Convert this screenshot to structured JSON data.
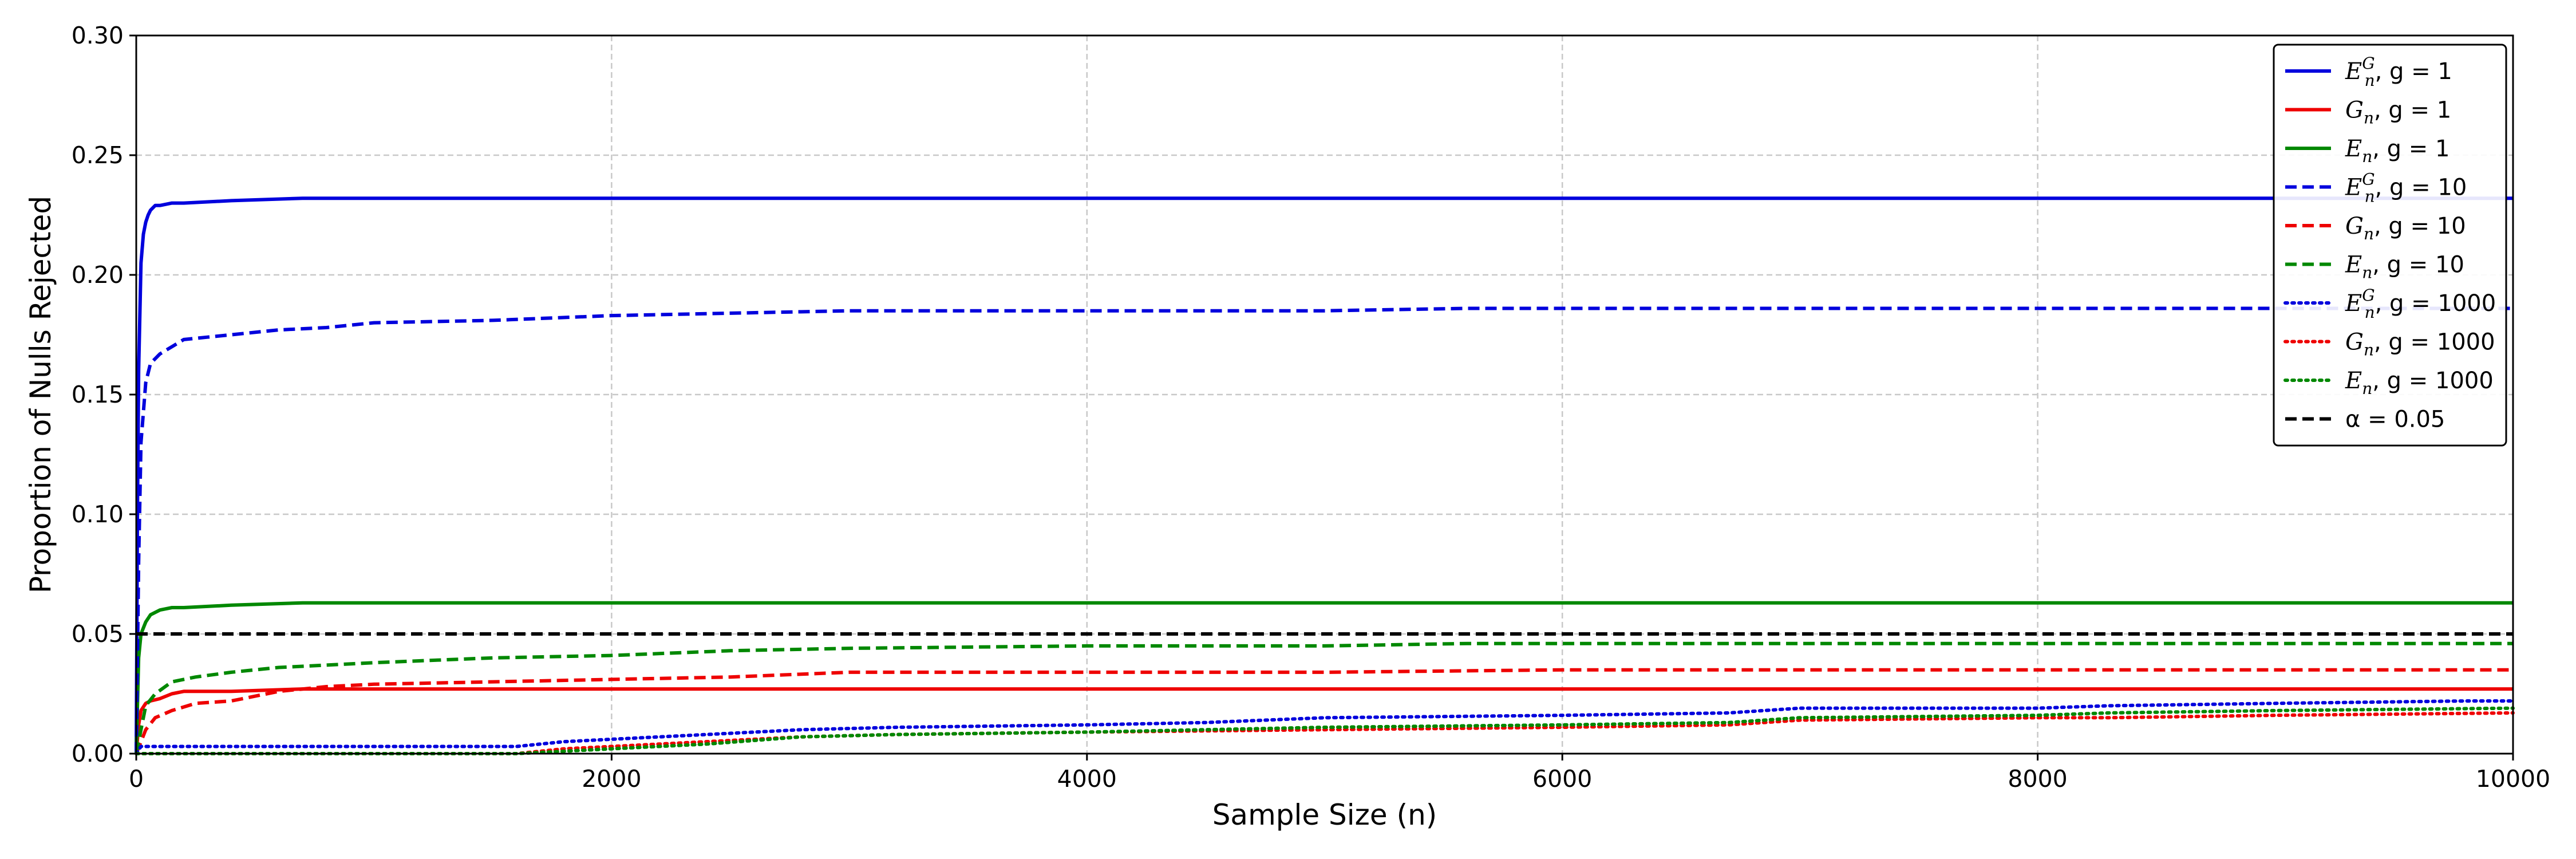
{
  "chart_data": {
    "type": "line",
    "title": "",
    "xlabel": "Sample Size (n)",
    "ylabel": "Proportion of Nulls Rejected",
    "xlim": [
      0,
      10000
    ],
    "ylim": [
      0,
      0.3
    ],
    "xticks": [
      "0",
      "2000",
      "4000",
      "6000",
      "8000",
      "10000"
    ],
    "yticks": [
      "0.00",
      "0.05",
      "0.10",
      "0.15",
      "0.20",
      "0.25",
      "0.30"
    ],
    "grid": true,
    "legend_position": "top-right",
    "series": [
      {
        "name": "E_n^G, g = 1",
        "legend": {
          "sym": "E",
          "sub": "n",
          "sup": "G",
          "rest": ", g = 1"
        },
        "color": "#0000dd",
        "dash": "solid",
        "x": [
          0,
          5,
          10,
          20,
          30,
          40,
          50,
          60,
          80,
          100,
          150,
          200,
          400,
          700,
          1000,
          10000
        ],
        "y": [
          0,
          0.1,
          0.16,
          0.205,
          0.217,
          0.222,
          0.225,
          0.227,
          0.229,
          0.229,
          0.23,
          0.23,
          0.231,
          0.232,
          0.232,
          0.232
        ]
      },
      {
        "name": "G_n, g = 1",
        "legend": {
          "sym": "G",
          "sub": "n",
          "sup": "",
          "rest": ", g = 1"
        },
        "color": "#ee0000",
        "dash": "solid",
        "x": [
          0,
          10,
          20,
          40,
          60,
          100,
          150,
          200,
          400,
          700,
          10000
        ],
        "y": [
          0,
          0.012,
          0.018,
          0.021,
          0.022,
          0.023,
          0.025,
          0.026,
          0.026,
          0.027,
          0.027
        ]
      },
      {
        "name": "E_n, g = 1",
        "legend": {
          "sym": "E",
          "sub": "n",
          "sup": "",
          "rest": ", g = 1"
        },
        "color": "#008800",
        "dash": "solid",
        "x": [
          0,
          10,
          20,
          40,
          60,
          100,
          150,
          200,
          400,
          700,
          10000
        ],
        "y": [
          0,
          0.04,
          0.05,
          0.055,
          0.058,
          0.06,
          0.061,
          0.061,
          0.062,
          0.063,
          0.063
        ]
      },
      {
        "name": "E_n^G, g = 10",
        "legend": {
          "sym": "E",
          "sub": "n",
          "sup": "G",
          "rest": ", g = 10"
        },
        "color": "#0000dd",
        "dash": "dashed",
        "x": [
          0,
          10,
          20,
          40,
          60,
          100,
          150,
          200,
          300,
          400,
          600,
          800,
          1000,
          1500,
          2000,
          2500,
          3000,
          4000,
          5000,
          5600,
          6000,
          10000
        ],
        "y": [
          0,
          0.08,
          0.13,
          0.155,
          0.163,
          0.167,
          0.17,
          0.173,
          0.174,
          0.175,
          0.177,
          0.178,
          0.18,
          0.181,
          0.183,
          0.184,
          0.185,
          0.185,
          0.185,
          0.186,
          0.186,
          0.186
        ]
      },
      {
        "name": "G_n, g = 10",
        "legend": {
          "sym": "G",
          "sub": "n",
          "sup": "",
          "rest": ", g = 10"
        },
        "color": "#ee0000",
        "dash": "dashed",
        "x": [
          0,
          20,
          40,
          80,
          150,
          250,
          400,
          600,
          800,
          1000,
          1500,
          2000,
          2500,
          3000,
          4000,
          5000,
          6000,
          10000
        ],
        "y": [
          0,
          0.005,
          0.01,
          0.015,
          0.018,
          0.021,
          0.022,
          0.026,
          0.028,
          0.029,
          0.03,
          0.031,
          0.032,
          0.034,
          0.034,
          0.034,
          0.035,
          0.035
        ]
      },
      {
        "name": "E_n, g = 10",
        "legend": {
          "sym": "E",
          "sub": "n",
          "sup": "",
          "rest": ", g = 10"
        },
        "color": "#008800",
        "dash": "dashed",
        "x": [
          0,
          20,
          40,
          80,
          150,
          250,
          400,
          600,
          1000,
          1500,
          2000,
          2500,
          3000,
          4000,
          5000,
          5600,
          6000,
          10000
        ],
        "y": [
          0,
          0.01,
          0.02,
          0.025,
          0.03,
          0.032,
          0.034,
          0.036,
          0.038,
          0.04,
          0.041,
          0.043,
          0.044,
          0.045,
          0.045,
          0.046,
          0.046,
          0.046
        ]
      },
      {
        "name": "E_n^G, g = 1000",
        "legend": {
          "sym": "E",
          "sub": "n",
          "sup": "G",
          "rest": ", g = 1000"
        },
        "color": "#0000dd",
        "dash": "dotted",
        "x": [
          0,
          20,
          500,
          1000,
          1500,
          1600,
          1800,
          2000,
          2400,
          2800,
          3200,
          4000,
          4500,
          5000,
          6000,
          6700,
          7000,
          8000,
          8300,
          9000,
          9800,
          10000
        ],
        "y": [
          0,
          0.003,
          0.003,
          0.003,
          0.003,
          0.003,
          0.005,
          0.006,
          0.008,
          0.01,
          0.011,
          0.012,
          0.013,
          0.015,
          0.016,
          0.017,
          0.019,
          0.019,
          0.02,
          0.021,
          0.022,
          0.022
        ]
      },
      {
        "name": "G_n, g = 1000",
        "legend": {
          "sym": "G",
          "sub": "n",
          "sup": "",
          "rest": ", g = 1000"
        },
        "color": "#ee0000",
        "dash": "dotted",
        "x": [
          0,
          1600,
          1800,
          2000,
          2400,
          2800,
          3200,
          4000,
          5000,
          6000,
          6700,
          7000,
          8000,
          8300,
          9000,
          10000
        ],
        "y": [
          0,
          0.0,
          0.002,
          0.003,
          0.005,
          0.007,
          0.008,
          0.009,
          0.01,
          0.011,
          0.012,
          0.014,
          0.015,
          0.015,
          0.016,
          0.017
        ]
      },
      {
        "name": "E_n, g = 1000",
        "legend": {
          "sym": "E",
          "sub": "n",
          "sup": "",
          "rest": ", g = 1000"
        },
        "color": "#008800",
        "dash": "dotted",
        "x": [
          0,
          1600,
          1800,
          2000,
          2400,
          2800,
          3200,
          4000,
          5000,
          6000,
          6700,
          7000,
          8000,
          8300,
          9000,
          10000
        ],
        "y": [
          0,
          0.0,
          0.001,
          0.002,
          0.004,
          0.007,
          0.008,
          0.009,
          0.011,
          0.012,
          0.013,
          0.015,
          0.016,
          0.017,
          0.018,
          0.019
        ]
      },
      {
        "name": "α = 0.05",
        "legend": {
          "sym": "",
          "sub": "",
          "sup": "",
          "rest": "α = 0.05"
        },
        "color": "#000000",
        "dash": "dashed",
        "x": [
          0,
          10000
        ],
        "y": [
          0.05,
          0.05
        ]
      }
    ]
  }
}
